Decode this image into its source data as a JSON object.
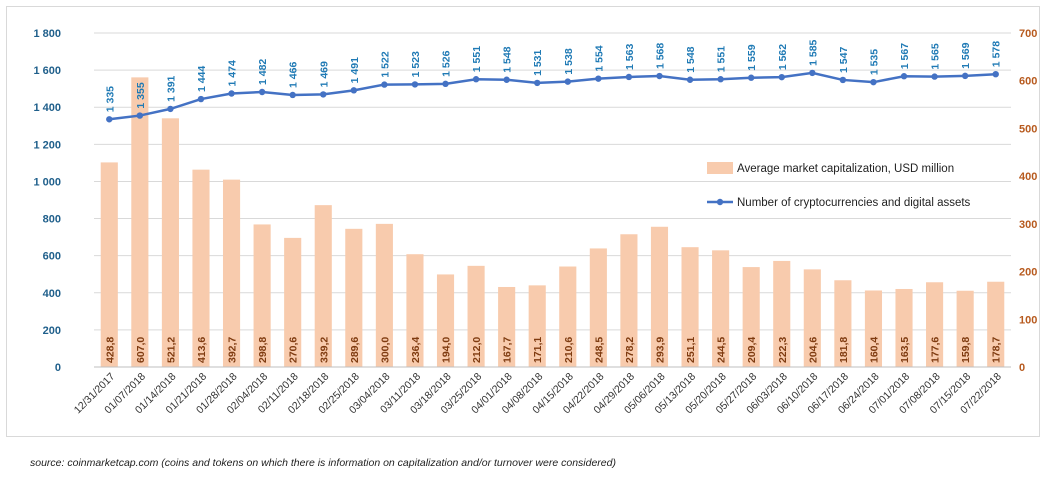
{
  "chart_data": {
    "type": "bar",
    "categories": [
      "12/31/2017",
      "01/07/2018",
      "01/14/2018",
      "01/21/2018",
      "01/28/2018",
      "02/04/2018",
      "02/11/2018",
      "02/18/2018",
      "02/25/2018",
      "03/04/2018",
      "03/11/2018",
      "03/18/2018",
      "03/25/2018",
      "04/01/2018",
      "04/08/2018",
      "04/15/2018",
      "04/22/2018",
      "04/29/2018",
      "05/06/2018",
      "05/13/2018",
      "05/20/2018",
      "05/27/2018",
      "06/03/2018",
      "06/10/2018",
      "06/17/2018",
      "06/24/2018",
      "07/01/2018",
      "07/08/2018",
      "07/15/2018",
      "07/22/2018"
    ],
    "series": [
      {
        "name": "Average market capitalization, USD million",
        "type": "bar",
        "axis": "right",
        "color": "#f8cbad",
        "values": [
          428.8,
          607.0,
          521.2,
          413.6,
          392.7,
          298.8,
          270.6,
          339.2,
          289.6,
          300.0,
          236.4,
          194.0,
          212.0,
          167.7,
          171.1,
          210.6,
          248.5,
          278.2,
          293.9,
          251.1,
          244.5,
          209.4,
          222.3,
          204.6,
          181.8,
          160.4,
          163.5,
          177.6,
          159.8,
          178.7
        ],
        "labels": [
          "428,8",
          "607,0",
          "521,2",
          "413,6",
          "392,7",
          "298,8",
          "270,6",
          "339,2",
          "289,6",
          "300,0",
          "236,4",
          "194,0",
          "212,0",
          "167,7",
          "171,1",
          "210,6",
          "248,5",
          "278,2",
          "293,9",
          "251,1",
          "244,5",
          "209,4",
          "222,3",
          "204,6",
          "181,8",
          "160,4",
          "163,5",
          "177,6",
          "159,8",
          "178,7"
        ]
      },
      {
        "name": "Number of cryptocurrencies and digital assets",
        "type": "line",
        "axis": "left",
        "color": "#4472c4",
        "values": [
          1335,
          1355,
          1391,
          1444,
          1474,
          1482,
          1466,
          1469,
          1491,
          1522,
          1523,
          1526,
          1551,
          1548,
          1531,
          1538,
          1554,
          1563,
          1568,
          1548,
          1551,
          1559,
          1562,
          1585,
          1547,
          1535,
          1567,
          1565,
          1569,
          1578
        ],
        "labels": [
          "1 335",
          "1 355",
          "1 391",
          "1 444",
          "1 474",
          "1 482",
          "1 466",
          "1 469",
          "1 491",
          "1 522",
          "1 523",
          "1 526",
          "1 551",
          "1 548",
          "1 531",
          "1 538",
          "1 554",
          "1 563",
          "1 568",
          "1 548",
          "1 551",
          "1 559",
          "1 562",
          "1 585",
          "1 547",
          "1 535",
          "1 567",
          "1 565",
          "1 569",
          "1 578"
        ]
      }
    ],
    "left_axis": {
      "ylim": [
        0,
        1800
      ],
      "ticks": [
        0,
        200,
        400,
        600,
        800,
        1000,
        1200,
        1400,
        1600,
        1800
      ],
      "tick_labels": [
        "0",
        "200",
        "400",
        "600",
        "800",
        "1 000",
        "1 200",
        "1 400",
        "1 600",
        "1 800"
      ]
    },
    "right_axis": {
      "ylim": [
        0,
        700
      ],
      "ticks": [
        0,
        100,
        200,
        300,
        400,
        500,
        600,
        700
      ],
      "tick_labels": [
        "0",
        "100",
        "200",
        "300",
        "400",
        "500",
        "600",
        "700"
      ]
    },
    "grid": true,
    "legend_position": "right-middle"
  },
  "source": "source: coinmarketcap.com (coins and tokens on which there is information on capitalization and/or turnover were considered)"
}
